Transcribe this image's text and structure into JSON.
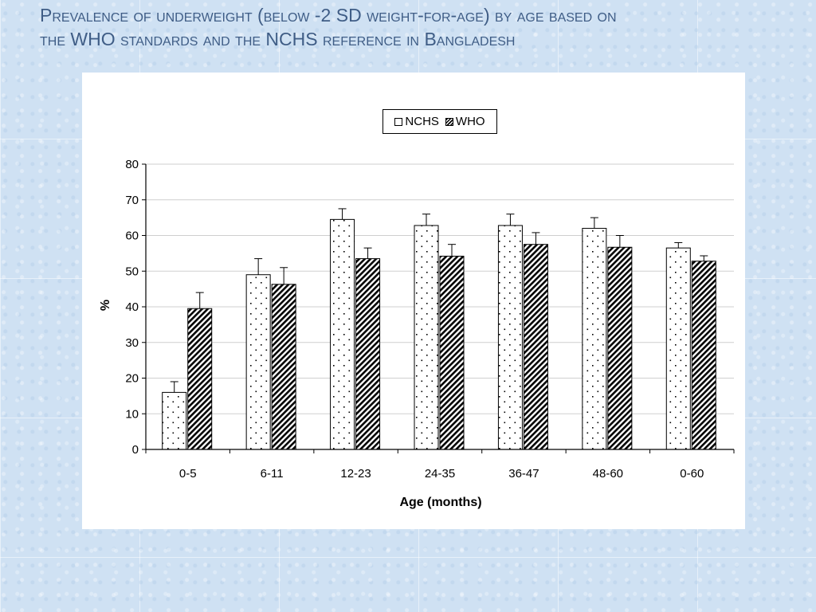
{
  "slide": {
    "title_line1": "Prevalence of underweight (below -2 SD weight-for-age) by age based on",
    "title_line2": "the WHO standards and the NCHS reference in Bangladesh"
  },
  "chart_data": {
    "type": "bar",
    "xlabel": "Age (months)",
    "ylabel": "%",
    "ylim": [
      0,
      80
    ],
    "yticks": [
      0,
      10,
      20,
      30,
      40,
      50,
      60,
      70,
      80
    ],
    "grid": true,
    "legend_position": "top-center",
    "categories": [
      "0-5",
      "6-11",
      "12-23",
      "24-35",
      "36-47",
      "48-60",
      "0-60"
    ],
    "series": [
      {
        "name": "NCHS",
        "pattern": "dotted",
        "values": [
          16,
          49,
          64.5,
          62.8,
          62.8,
          62,
          56.5
        ],
        "error_upper": [
          19,
          53.5,
          67.5,
          66,
          66,
          65,
          58
        ]
      },
      {
        "name": "WHO",
        "pattern": "diagonal-hatch",
        "values": [
          39.5,
          46.3,
          53.5,
          54.2,
          57.5,
          56.7,
          52.8
        ],
        "error_upper": [
          44,
          51,
          56.5,
          57.5,
          60.8,
          60,
          54.3
        ]
      }
    ]
  }
}
